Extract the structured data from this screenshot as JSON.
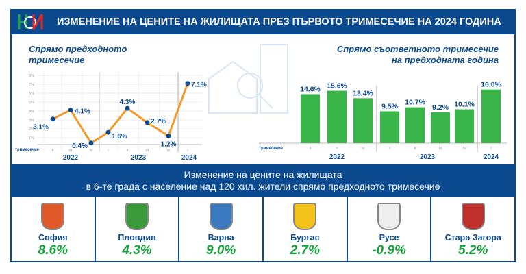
{
  "header": {
    "title": "ИЗМЕНЕНИЕ НА ЦЕНИТЕ НА ЖИЛИЩАТА ПРЕЗ ПЪРВОТО ТРИМЕСЕЧИЕ НА 2024 ГОДИНА",
    "logo_text": "НСИ"
  },
  "left_subtitle": [
    "Спрямо предходното",
    "тримесечие"
  ],
  "right_subtitle": [
    "Спрямо съответното тримесечие",
    "на предходната година"
  ],
  "chart_data": [
    {
      "type": "line",
      "title": "Спрямо предходното тримесечие",
      "xlabel": "тримесечие",
      "categories": [
        "II",
        "III",
        "IV",
        "I",
        "II",
        "III",
        "IV",
        "I"
      ],
      "years": [
        {
          "label": "2022",
          "quarters": 3
        },
        {
          "label": "2023",
          "quarters": 4
        },
        {
          "label": "2024",
          "quarters": 1
        }
      ],
      "values": [
        3.1,
        4.1,
        0.4,
        1.6,
        4.3,
        2.7,
        1.2,
        7.1
      ],
      "labels": [
        "3.1%",
        "4.1%",
        "0.4%",
        "1.6%",
        "4.3%",
        "2.7%",
        "1.2%",
        "7.1%"
      ],
      "yticks": [
        "1%",
        "2%",
        "3%",
        "4%",
        "5%",
        "6%",
        "7%",
        "8%"
      ],
      "ylim": [
        0,
        8
      ],
      "color": "#f39a2b",
      "point_color": "#0b4a8f"
    },
    {
      "type": "bar",
      "title": "Спрямо съответното тримесечие на предходната година",
      "xlabel": "тримесечие",
      "categories": [
        "II",
        "III",
        "IV",
        "I",
        "II",
        "III",
        "IV",
        "I"
      ],
      "years": [
        {
          "label": "2022",
          "quarters": 3
        },
        {
          "label": "2023",
          "quarters": 4
        },
        {
          "label": "2024",
          "quarters": 1
        }
      ],
      "values": [
        14.6,
        15.6,
        13.4,
        9.5,
        10.7,
        9.2,
        10.1,
        16.0
      ],
      "labels": [
        "14.6%",
        "15.6%",
        "13.4%",
        "9.5%",
        "10.7%",
        "9.2%",
        "10.1%",
        "16.0%"
      ],
      "ylim": [
        0,
        16
      ],
      "color": "#3ab54a"
    }
  ],
  "band": {
    "line1": "Изменение на цените на жилищата",
    "line2": "в 6-те града с население над 120 хил. жители спрямо предходното тримесечие"
  },
  "cities": [
    {
      "name": "София",
      "value": "8.6%",
      "crest": "sofia-crest-icon"
    },
    {
      "name": "Пловдив",
      "value": "4.3%",
      "crest": "plovdiv-crest-icon"
    },
    {
      "name": "Варна",
      "value": "9.0%",
      "crest": "varna-crest-icon"
    },
    {
      "name": "Бургас",
      "value": "2.7%",
      "crest": "burgas-crest-icon"
    },
    {
      "name": "Русе",
      "value": "-0.9%",
      "crest": "ruse-crest-icon"
    },
    {
      "name": "Стара Загора",
      "value": "5.2%",
      "crest": "stara-zagora-crest-icon"
    }
  ],
  "colors": {
    "brand": "#0b4a8f",
    "positive": "#16a13a"
  }
}
